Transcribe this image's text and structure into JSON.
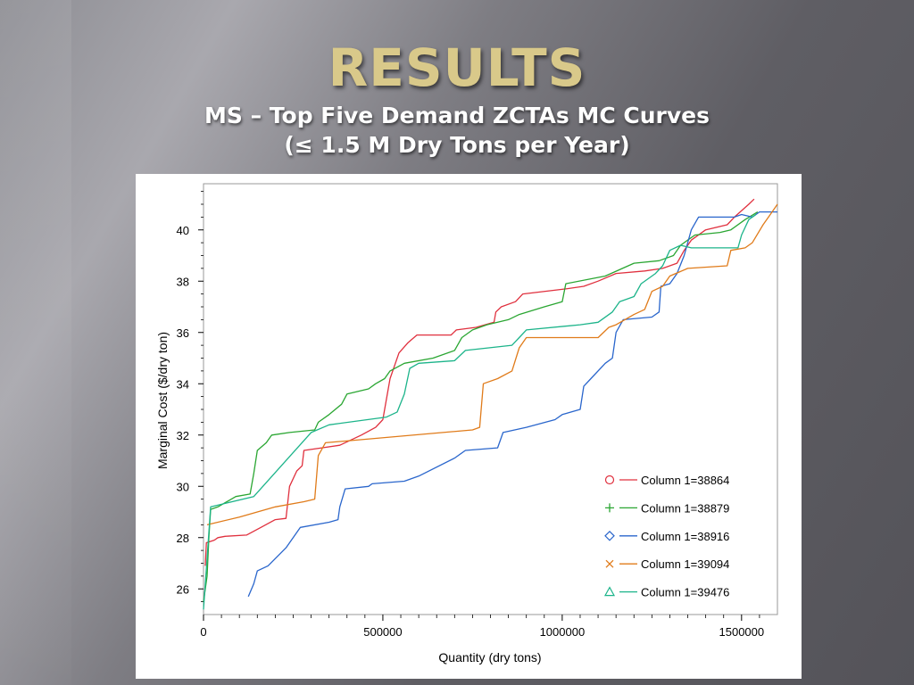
{
  "slide": {
    "title": "RESULTS",
    "subtitle_line1": "MS – Top Five Demand ZCTAs MC Curves",
    "subtitle_line2": "(≤ 1.5 M Dry Tons per Year)"
  },
  "chart_data": {
    "type": "line",
    "xlabel": "Quantity (dry tons)",
    "ylabel": "Marginal Cost ($/dry ton)",
    "xlim": [
      0,
      1600000
    ],
    "ylim": [
      25,
      41.8
    ],
    "xticks": [
      0,
      500000,
      1000000,
      1500000
    ],
    "xtick_labels": [
      "0",
      "500000",
      "1000000",
      "1500000"
    ],
    "yticks": [
      26,
      28,
      30,
      32,
      34,
      36,
      38,
      40
    ],
    "ytick_labels": [
      "26",
      "28",
      "30",
      "32",
      "34",
      "36",
      "38",
      "40"
    ],
    "grid": false,
    "legend_position": "lower-right",
    "series": [
      {
        "name": "Column 1=38864",
        "color": "#e0303e",
        "marker": "circle",
        "points": [
          [
            5000,
            26.9
          ],
          [
            8000,
            27.8
          ],
          [
            30000,
            27.9
          ],
          [
            40000,
            28.0
          ],
          [
            60000,
            28.05
          ],
          [
            120000,
            28.1
          ],
          [
            160000,
            28.4
          ],
          [
            200000,
            28.7
          ],
          [
            230000,
            28.75
          ],
          [
            240000,
            30.0
          ],
          [
            260000,
            30.6
          ],
          [
            275000,
            30.8
          ],
          [
            280000,
            31.4
          ],
          [
            330000,
            31.5
          ],
          [
            380000,
            31.6
          ],
          [
            440000,
            32.0
          ],
          [
            480000,
            32.3
          ],
          [
            500000,
            32.6
          ],
          [
            520000,
            34.2
          ],
          [
            545000,
            35.2
          ],
          [
            570000,
            35.6
          ],
          [
            595000,
            35.9
          ],
          [
            690000,
            35.9
          ],
          [
            705000,
            36.1
          ],
          [
            760000,
            36.2
          ],
          [
            810000,
            36.4
          ],
          [
            815000,
            36.8
          ],
          [
            830000,
            37.0
          ],
          [
            870000,
            37.2
          ],
          [
            890000,
            37.5
          ],
          [
            1010000,
            37.7
          ],
          [
            1060000,
            37.8
          ],
          [
            1100000,
            38.0
          ],
          [
            1150000,
            38.3
          ],
          [
            1230000,
            38.4
          ],
          [
            1280000,
            38.5
          ],
          [
            1320000,
            38.7
          ],
          [
            1340000,
            39.2
          ],
          [
            1360000,
            39.6
          ],
          [
            1400000,
            40.0
          ],
          [
            1460000,
            40.2
          ],
          [
            1480000,
            40.5
          ],
          [
            1520000,
            41.0
          ],
          [
            1535000,
            41.2
          ]
        ]
      },
      {
        "name": "Column 1=38879",
        "color": "#2aa632",
        "marker": "plus",
        "points": [
          [
            0,
            25.5
          ],
          [
            10000,
            26.5
          ],
          [
            15000,
            28.0
          ],
          [
            20000,
            29.1
          ],
          [
            40000,
            29.2
          ],
          [
            90000,
            29.6
          ],
          [
            130000,
            29.7
          ],
          [
            140000,
            30.5
          ],
          [
            150000,
            31.4
          ],
          [
            175000,
            31.7
          ],
          [
            190000,
            32.0
          ],
          [
            240000,
            32.1
          ],
          [
            310000,
            32.2
          ],
          [
            320000,
            32.5
          ],
          [
            350000,
            32.8
          ],
          [
            385000,
            33.2
          ],
          [
            400000,
            33.6
          ],
          [
            460000,
            33.8
          ],
          [
            480000,
            34.0
          ],
          [
            505000,
            34.2
          ],
          [
            520000,
            34.5
          ],
          [
            560000,
            34.8
          ],
          [
            640000,
            35.0
          ],
          [
            700000,
            35.3
          ],
          [
            720000,
            35.8
          ],
          [
            750000,
            36.1
          ],
          [
            790000,
            36.3
          ],
          [
            850000,
            36.5
          ],
          [
            880000,
            36.7
          ],
          [
            950000,
            37.0
          ],
          [
            1000000,
            37.2
          ],
          [
            1010000,
            37.9
          ],
          [
            1120000,
            38.2
          ],
          [
            1200000,
            38.7
          ],
          [
            1270000,
            38.8
          ],
          [
            1310000,
            39.0
          ],
          [
            1330000,
            39.4
          ],
          [
            1350000,
            39.6
          ],
          [
            1370000,
            39.8
          ],
          [
            1440000,
            39.9
          ],
          [
            1470000,
            40.0
          ],
          [
            1510000,
            40.4
          ],
          [
            1545000,
            40.7
          ]
        ]
      },
      {
        "name": "Column 1=38916",
        "color": "#2a66cc",
        "marker": "diamond",
        "points": [
          [
            125000,
            25.7
          ],
          [
            140000,
            26.2
          ],
          [
            150000,
            26.7
          ],
          [
            180000,
            26.9
          ],
          [
            230000,
            27.6
          ],
          [
            270000,
            28.4
          ],
          [
            350000,
            28.6
          ],
          [
            375000,
            28.7
          ],
          [
            380000,
            29.2
          ],
          [
            395000,
            29.9
          ],
          [
            460000,
            30.0
          ],
          [
            470000,
            30.1
          ],
          [
            560000,
            30.2
          ],
          [
            600000,
            30.4
          ],
          [
            700000,
            31.1
          ],
          [
            730000,
            31.4
          ],
          [
            820000,
            31.5
          ],
          [
            835000,
            32.1
          ],
          [
            900000,
            32.3
          ],
          [
            980000,
            32.6
          ],
          [
            1000000,
            32.8
          ],
          [
            1050000,
            33.0
          ],
          [
            1060000,
            33.9
          ],
          [
            1080000,
            34.2
          ],
          [
            1120000,
            34.8
          ],
          [
            1140000,
            35.0
          ],
          [
            1150000,
            36.0
          ],
          [
            1170000,
            36.5
          ],
          [
            1250000,
            36.6
          ],
          [
            1270000,
            36.8
          ],
          [
            1275000,
            37.8
          ],
          [
            1300000,
            37.9
          ],
          [
            1320000,
            38.3
          ],
          [
            1340000,
            39.0
          ],
          [
            1360000,
            40.0
          ],
          [
            1380000,
            40.5
          ],
          [
            1480000,
            40.5
          ],
          [
            1500000,
            40.6
          ],
          [
            1530000,
            40.5
          ],
          [
            1550000,
            40.7
          ],
          [
            1600000,
            40.7
          ]
        ]
      },
      {
        "name": "Column 1=39094",
        "color": "#e07b1a",
        "marker": "x",
        "points": [
          [
            10000,
            28.5
          ],
          [
            100000,
            28.8
          ],
          [
            150000,
            29.0
          ],
          [
            200000,
            29.2
          ],
          [
            280000,
            29.4
          ],
          [
            310000,
            29.5
          ],
          [
            320000,
            31.2
          ],
          [
            340000,
            31.7
          ],
          [
            750000,
            32.2
          ],
          [
            770000,
            32.3
          ],
          [
            780000,
            34.0
          ],
          [
            820000,
            34.2
          ],
          [
            860000,
            34.5
          ],
          [
            880000,
            35.4
          ],
          [
            900000,
            35.8
          ],
          [
            980000,
            35.8
          ],
          [
            1000000,
            35.8
          ],
          [
            1100000,
            35.8
          ],
          [
            1130000,
            36.2
          ],
          [
            1150000,
            36.3
          ],
          [
            1200000,
            36.7
          ],
          [
            1230000,
            36.9
          ],
          [
            1250000,
            37.6
          ],
          [
            1280000,
            37.8
          ],
          [
            1300000,
            38.2
          ],
          [
            1350000,
            38.5
          ],
          [
            1460000,
            38.6
          ],
          [
            1470000,
            39.2
          ],
          [
            1510000,
            39.3
          ],
          [
            1530000,
            39.5
          ],
          [
            1560000,
            40.2
          ],
          [
            1580000,
            40.6
          ],
          [
            1600000,
            41.0
          ]
        ]
      },
      {
        "name": "Column 1=39476",
        "color": "#1cb48a",
        "marker": "triangle",
        "points": [
          [
            0,
            25.2
          ],
          [
            20000,
            29.2
          ],
          [
            140000,
            29.6
          ],
          [
            300000,
            32.1
          ],
          [
            350000,
            32.4
          ],
          [
            510000,
            32.7
          ],
          [
            540000,
            32.9
          ],
          [
            560000,
            33.6
          ],
          [
            575000,
            34.6
          ],
          [
            600000,
            34.8
          ],
          [
            700000,
            34.9
          ],
          [
            730000,
            35.3
          ],
          [
            860000,
            35.5
          ],
          [
            880000,
            35.8
          ],
          [
            900000,
            36.1
          ],
          [
            1050000,
            36.3
          ],
          [
            1100000,
            36.4
          ],
          [
            1140000,
            36.8
          ],
          [
            1160000,
            37.2
          ],
          [
            1200000,
            37.4
          ],
          [
            1220000,
            37.9
          ],
          [
            1260000,
            38.3
          ],
          [
            1280000,
            38.6
          ],
          [
            1300000,
            39.2
          ],
          [
            1330000,
            39.4
          ],
          [
            1360000,
            39.3
          ],
          [
            1490000,
            39.3
          ],
          [
            1500000,
            39.8
          ],
          [
            1520000,
            40.4
          ],
          [
            1540000,
            40.6
          ]
        ]
      }
    ]
  }
}
